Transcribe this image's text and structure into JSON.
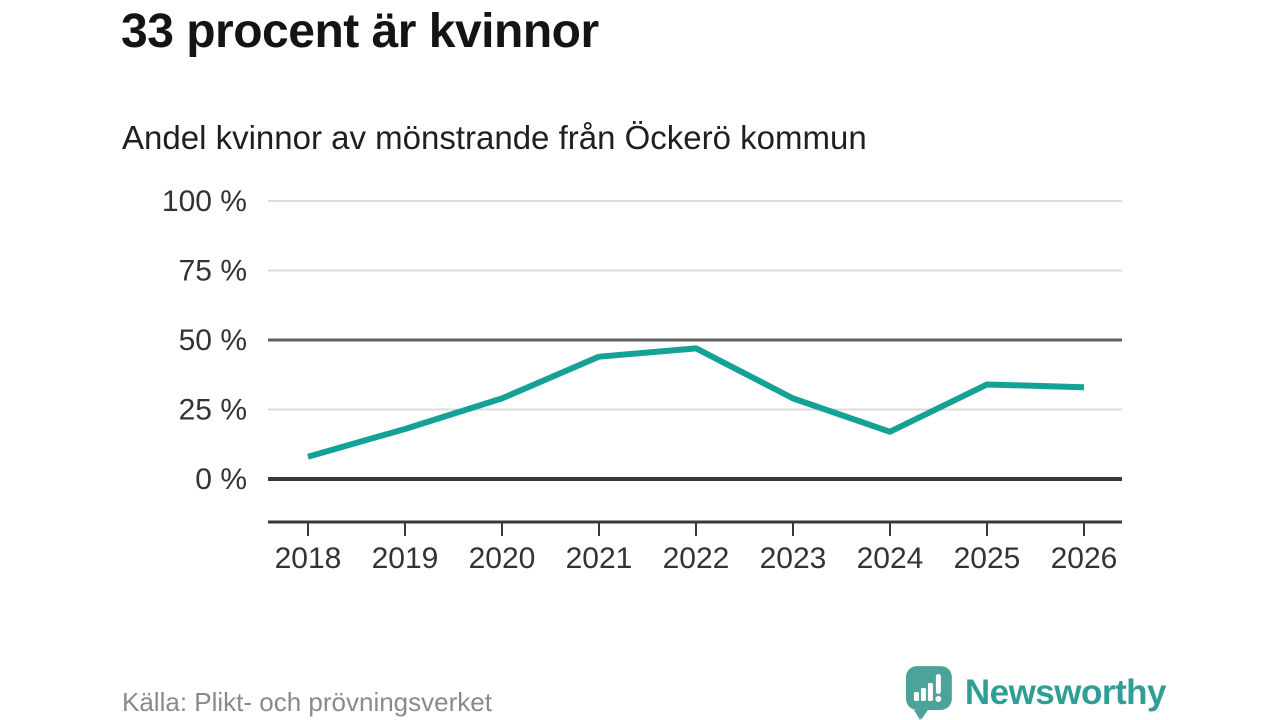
{
  "title": "33 procent är kvinnor",
  "subtitle": "Andel kvinnor av mönstrande från Öckerö kommun",
  "footer": {
    "source": "Källa: Plikt- och prövningsverket",
    "brand_name": "Newsworthy",
    "brand_color": "#2f9e94",
    "brand_bubble_color": "#4ba39a",
    "brand_icon": "speech-bubble-bar-chart-icon"
  },
  "chart_data": {
    "type": "line",
    "title": "33 procent är kvinnor",
    "subtitle": "Andel kvinnor av mönstrande från Öckerö kommun",
    "categories": [
      "2018",
      "2019",
      "2020",
      "2021",
      "2022",
      "2023",
      "2024",
      "2025",
      "2026"
    ],
    "series": [
      {
        "name": "Andel kvinnor av mönstrande från Öckerö kommun",
        "values": [
          8,
          18,
          29,
          44,
          47,
          29,
          17,
          34,
          33
        ]
      }
    ],
    "unit": "%",
    "xlabel": "",
    "ylabel": "",
    "ylim": [
      0,
      100
    ],
    "yticks": [
      0,
      25,
      50,
      75,
      100
    ],
    "ytick_suffix": " %",
    "gridline_styles": {
      "0": "strong",
      "50": "medium"
    },
    "grid": "horizontal",
    "legend": "none",
    "line_color": "#14a296"
  }
}
